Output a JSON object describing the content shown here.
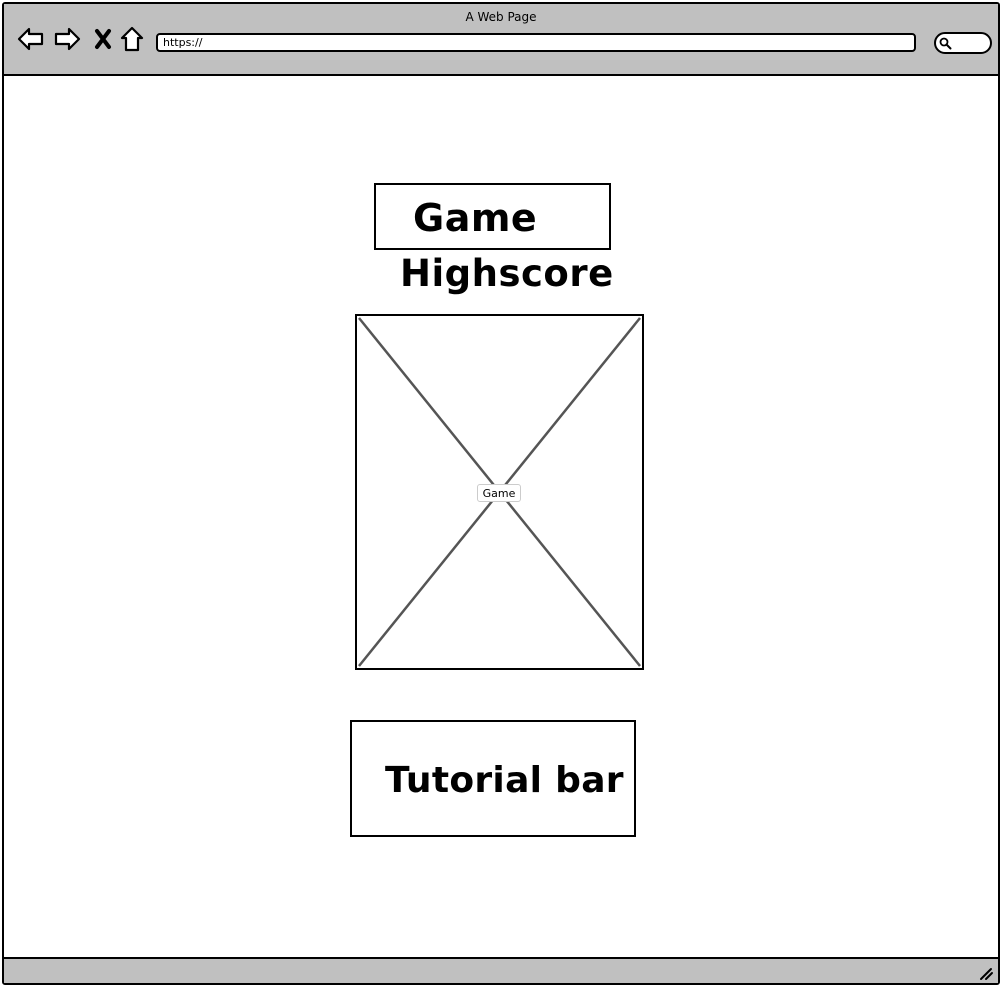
{
  "window": {
    "title": "A Web Page",
    "address_bar": "https://",
    "icons": [
      "back-arrow-icon",
      "forward-arrow-icon",
      "close-icon",
      "home-icon",
      "search-icon",
      "resize-grip-icon"
    ]
  },
  "page": {
    "game_title": "Game",
    "highscore": "Highscore",
    "game_area_label": "Game",
    "tutorial_bar": "Tutorial bar"
  }
}
